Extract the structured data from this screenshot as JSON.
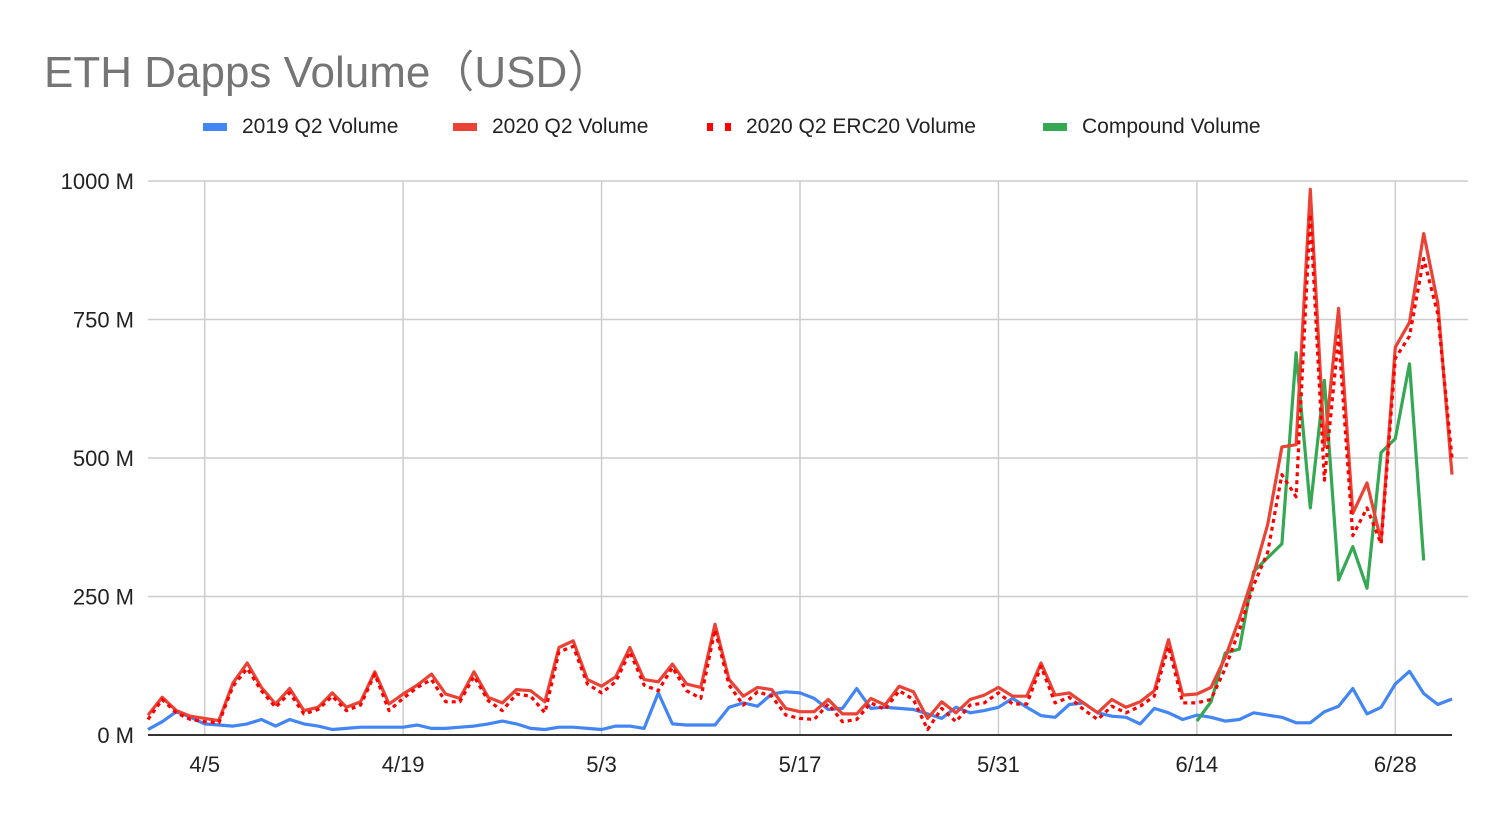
{
  "chart_data": {
    "type": "line",
    "title": "ETH Dapps Volume（USD）",
    "xlabel": "",
    "ylabel": "",
    "ylim": [
      0,
      1000
    ],
    "y_ticks": [
      "1000 M",
      "750 M",
      "500 M",
      "250 M",
      "0 M"
    ],
    "y_tick_values": [
      1000,
      750,
      500,
      250,
      0
    ],
    "x_tick_labels": [
      "4/5",
      "4/19",
      "5/3",
      "5/17",
      "5/31",
      "6/14",
      "6/28"
    ],
    "x_tick_days": [
      4,
      18,
      32,
      46,
      60,
      74,
      88
    ],
    "grid": true,
    "legend_position": "top",
    "colors": {
      "blue": "#4285f4",
      "red": "#ea4335",
      "dotted_red": "#ff0000",
      "green": "#34a853",
      "grid": "#cccccc",
      "axis": "#333333"
    },
    "series": [
      {
        "name": "2019 Q2 Volume",
        "color": "#4285f4",
        "style": "solid",
        "values": [
          10,
          24,
          42,
          32,
          20,
          18,
          16,
          20,
          28,
          16,
          28,
          20,
          16,
          10,
          12,
          14,
          14,
          14,
          14,
          18,
          12,
          12,
          14,
          16,
          20,
          25,
          20,
          12,
          10,
          14,
          14,
          12,
          10,
          16,
          16,
          12,
          76,
          20,
          18,
          18,
          18,
          50,
          58,
          52,
          74,
          78,
          76,
          66,
          46,
          48,
          84,
          48,
          50,
          48,
          46,
          38,
          30,
          50,
          40,
          44,
          50,
          66,
          50,
          35,
          32,
          55,
          58,
          40,
          34,
          32,
          20,
          48,
          40,
          28,
          36,
          32,
          25,
          28,
          40,
          36,
          32,
          22,
          22,
          42,
          52,
          84,
          38,
          50,
          92,
          115,
          75,
          55,
          65
        ]
      },
      {
        "name": "2020 Q2 Volume",
        "color": "#ea4335",
        "style": "solid",
        "values": [
          36,
          68,
          44,
          34,
          30,
          26,
          94,
          130,
          86,
          56,
          84,
          44,
          50,
          76,
          50,
          60,
          114,
          56,
          74,
          90,
          110,
          74,
          66,
          114,
          68,
          58,
          82,
          80,
          60,
          158,
          170,
          100,
          88,
          105,
          158,
          100,
          96,
          128,
          92,
          86,
          200,
          100,
          70,
          86,
          82,
          48,
          42,
          42,
          64,
          38,
          38,
          66,
          54,
          88,
          78,
          30,
          60,
          40,
          64,
          72,
          86,
          70,
          70,
          130,
          72,
          76,
          58,
          40,
          64,
          50,
          60,
          80,
          172,
          72,
          74,
          86,
          140,
          210,
          290,
          380,
          520,
          524,
          985,
          520,
          770,
          400,
          455,
          350,
          700,
          745,
          905,
          780,
          470
        ]
      },
      {
        "name": "2020 Q2 ERC20 Volume",
        "color": "#ff0000",
        "style": "dotted",
        "values": [
          28,
          64,
          40,
          28,
          24,
          22,
          88,
          120,
          80,
          50,
          76,
          38,
          46,
          70,
          44,
          54,
          110,
          44,
          66,
          86,
          100,
          60,
          60,
          106,
          62,
          44,
          74,
          70,
          40,
          150,
          160,
          92,
          76,
          96,
          150,
          90,
          80,
          122,
          80,
          66,
          190,
          90,
          54,
          78,
          70,
          36,
          30,
          28,
          56,
          24,
          28,
          58,
          46,
          80,
          64,
          10,
          48,
          24,
          54,
          58,
          76,
          56,
          56,
          124,
          58,
          68,
          46,
          28,
          52,
          40,
          52,
          70,
          160,
          58,
          58,
          64,
          120,
          190,
          270,
          330,
          470,
          430,
          940,
          460,
          720,
          360,
          410,
          345,
          680,
          720,
          860,
          760,
          500
        ]
      },
      {
        "name": "Compound Volume",
        "color": "#34a853",
        "style": "solid",
        "start_day": 74,
        "values": [
          25,
          60,
          148,
          155,
          295,
          320,
          345,
          690,
          410,
          640,
          280,
          340,
          265,
          510,
          535,
          670,
          315
        ]
      }
    ]
  }
}
